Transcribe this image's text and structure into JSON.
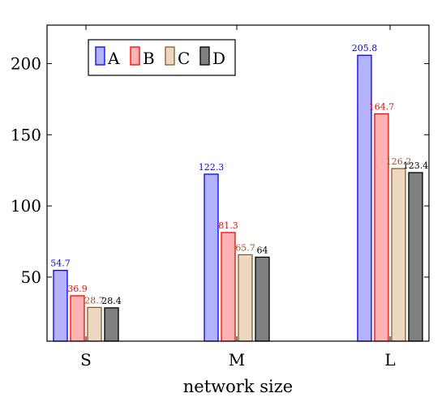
{
  "chart_data": {
    "type": "bar",
    "title": "",
    "xlabel": "network size",
    "ylabel": "",
    "categories": [
      "S",
      "M",
      "L"
    ],
    "ylim": [
      5,
      227
    ],
    "yticks": [
      50,
      100,
      150,
      200
    ],
    "grid": false,
    "legend_position": "top-left",
    "legend_orientation": "horizontal",
    "series": [
      {
        "name": "A",
        "values": [
          54.7,
          122.3,
          205.8
        ],
        "labels": [
          "54.7",
          "122.3",
          "205.8"
        ],
        "fill": "#b3b3ff",
        "stroke": "#0000ff"
      },
      {
        "name": "B",
        "values": [
          36.9,
          81.3,
          164.7
        ],
        "labels": [
          "36.9",
          "81.3",
          "164.7"
        ],
        "fill": "#ffb3b3",
        "stroke": "#ff0000"
      },
      {
        "name": "C",
        "values": [
          28.7,
          65.7,
          126.2
        ],
        "labels": [
          "28.7",
          "65.7",
          "126.2"
        ],
        "fill": "#ecd8c0",
        "stroke": "#8c5a2a"
      },
      {
        "name": "D",
        "values": [
          28.4,
          64,
          123.4
        ],
        "labels": [
          "28.4",
          "64",
          "123.4"
        ],
        "fill": "#7f7f7f",
        "stroke": "#000000"
      }
    ]
  }
}
